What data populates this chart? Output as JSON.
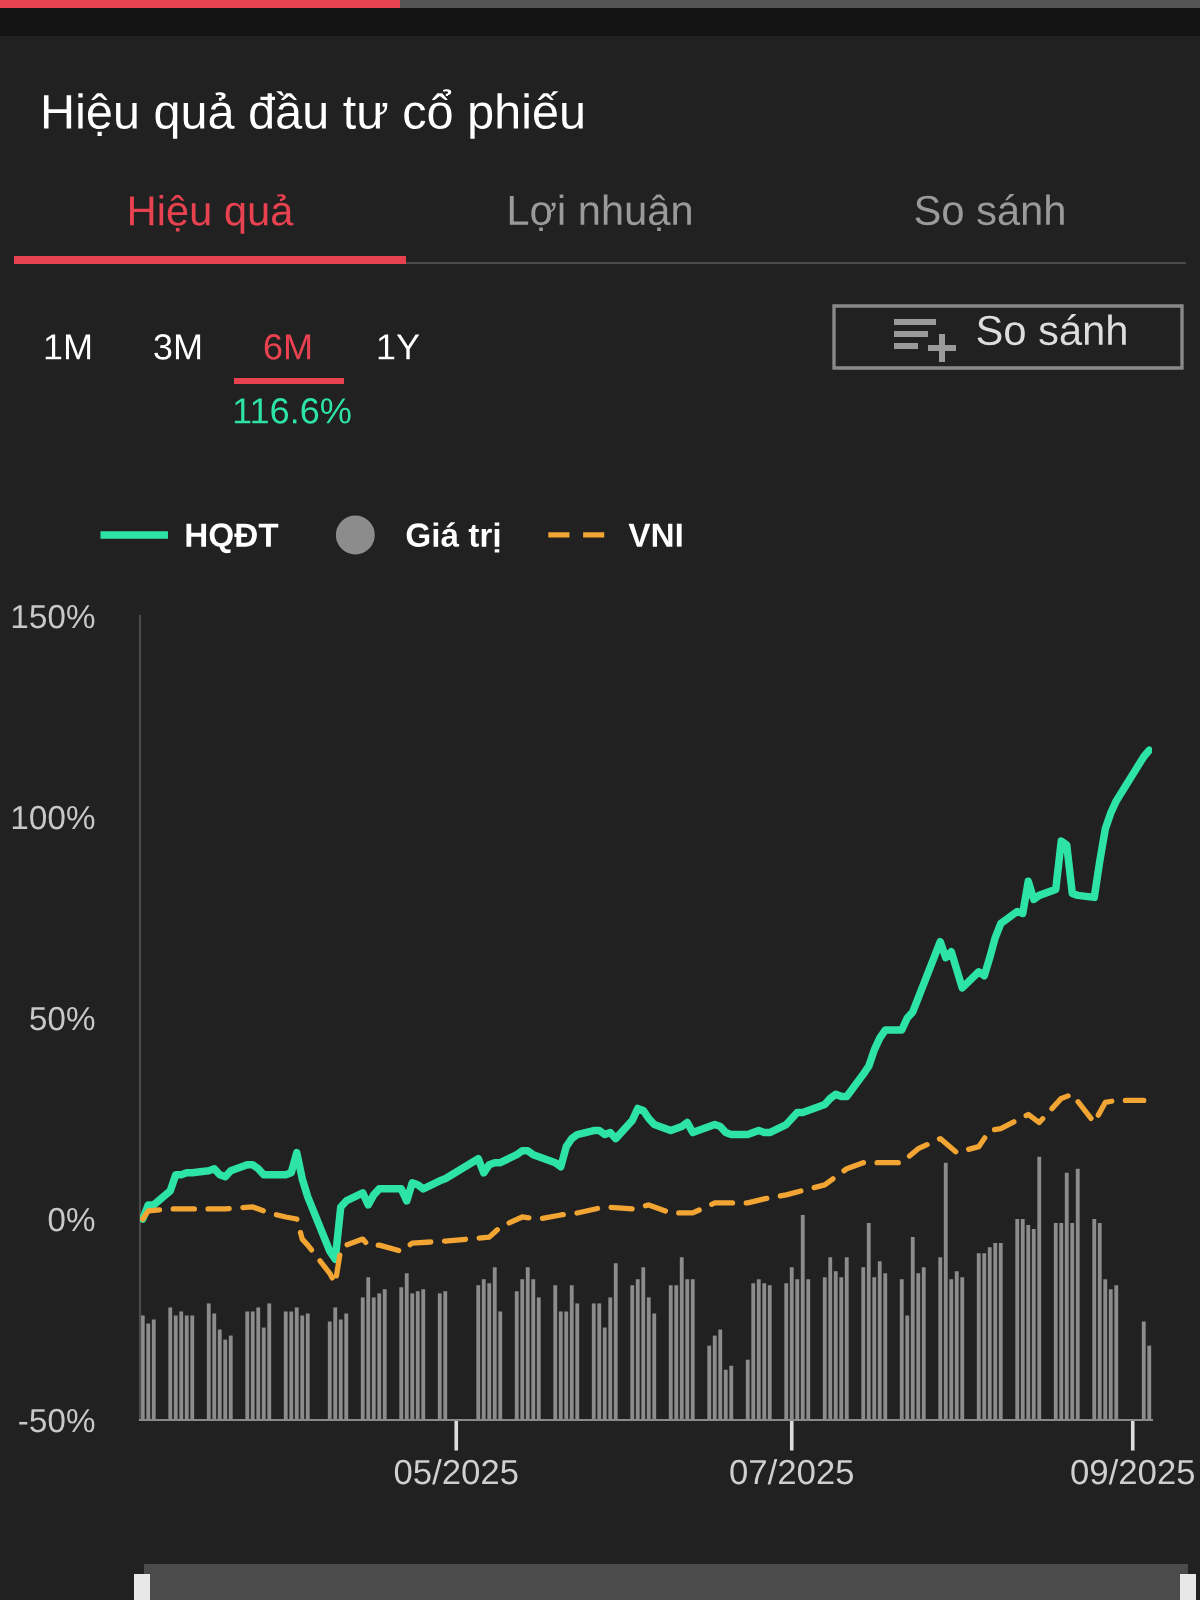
{
  "chart_data": {
    "type": "line",
    "title": "Hiệu quả đầu tư cổ phiếu",
    "annotations": [
      "Hiệu quả",
      "Lợi nhuận",
      "So sánh",
      "1M",
      "3M",
      "6M",
      "1Y",
      "116.6%",
      "So sánh"
    ],
    "xlim": [
      "2025-03-04T12:00",
      "2025-09-04T12:00"
    ],
    "xticks": [
      {
        "value": "2025-05-01",
        "label": "05/2025"
      },
      {
        "value": "2025-07-01",
        "label": "07/2025"
      },
      {
        "value": "2025-09-01",
        "label": "09/2025"
      }
    ],
    "ylim": [
      -50,
      150
    ],
    "yticks": [
      {
        "value": -50,
        "label": "-50%"
      },
      {
        "value": 0,
        "label": "0%"
      },
      {
        "value": 50,
        "label": "50%"
      },
      {
        "value": 100,
        "label": "100%"
      },
      {
        "value": 150,
        "label": "150%"
      }
    ],
    "legend": "top left",
    "series": [
      {
        "name": "HQĐT",
        "color": "#2ee3a6",
        "line_style": "solid",
        "x": [
          "2025-03-05",
          "2025-03-06",
          "2025-03-07",
          "2025-03-10",
          "2025-03-11",
          "2025-03-12",
          "2025-03-13",
          "2025-03-14",
          "2025-03-17",
          "2025-03-18",
          "2025-03-19",
          "2025-03-20",
          "2025-03-21",
          "2025-03-24",
          "2025-03-25",
          "2025-03-26",
          "2025-03-27",
          "2025-03-28",
          "2025-03-31",
          "2025-04-01",
          "2025-04-02",
          "2025-04-03",
          "2025-04-04",
          "2025-04-08",
          "2025-04-09",
          "2025-04-10",
          "2025-04-11",
          "2025-04-14",
          "2025-04-15",
          "2025-04-16",
          "2025-04-17",
          "2025-04-18",
          "2025-04-21",
          "2025-04-22",
          "2025-04-23",
          "2025-04-24",
          "2025-04-25",
          "2025-04-28",
          "2025-04-29",
          "2025-05-05",
          "2025-05-06",
          "2025-05-07",
          "2025-05-08",
          "2025-05-09",
          "2025-05-12",
          "2025-05-13",
          "2025-05-14",
          "2025-05-15",
          "2025-05-16",
          "2025-05-19",
          "2025-05-20",
          "2025-05-21",
          "2025-05-22",
          "2025-05-23",
          "2025-05-26",
          "2025-05-27",
          "2025-05-28",
          "2025-05-29",
          "2025-05-30",
          "2025-06-02",
          "2025-06-03",
          "2025-06-04",
          "2025-06-05",
          "2025-06-06",
          "2025-06-09",
          "2025-06-10",
          "2025-06-11",
          "2025-06-12",
          "2025-06-13",
          "2025-06-16",
          "2025-06-17",
          "2025-06-18",
          "2025-06-19",
          "2025-06-20",
          "2025-06-23",
          "2025-06-24",
          "2025-06-25",
          "2025-06-26",
          "2025-06-27",
          "2025-06-30",
          "2025-07-01",
          "2025-07-02",
          "2025-07-03",
          "2025-07-04",
          "2025-07-07",
          "2025-07-08",
          "2025-07-09",
          "2025-07-10",
          "2025-07-11",
          "2025-07-14",
          "2025-07-15",
          "2025-07-16",
          "2025-07-17",
          "2025-07-18",
          "2025-07-21",
          "2025-07-22",
          "2025-07-23",
          "2025-07-24",
          "2025-07-25",
          "2025-07-28",
          "2025-07-29",
          "2025-07-30",
          "2025-07-31",
          "2025-08-01",
          "2025-08-04",
          "2025-08-05",
          "2025-08-06",
          "2025-08-07",
          "2025-08-08",
          "2025-08-11",
          "2025-08-12",
          "2025-08-13",
          "2025-08-14",
          "2025-08-15",
          "2025-08-18",
          "2025-08-19",
          "2025-08-20",
          "2025-08-21",
          "2025-08-22",
          "2025-08-25",
          "2025-08-26",
          "2025-08-27",
          "2025-08-28",
          "2025-08-29",
          "2025-09-03",
          "2025-09-04"
        ],
        "values": [
          0,
          3.5,
          3.5,
          7,
          11,
          11,
          11.5,
          11.5,
          12,
          12.5,
          11,
          10.5,
          12,
          13.5,
          13.5,
          12.5,
          11,
          11,
          11,
          11.5,
          16.5,
          10,
          5.5,
          -8,
          -10,
          3,
          4.5,
          6.5,
          3.5,
          6,
          7.5,
          7.5,
          7.5,
          4.5,
          9,
          8.5,
          7.5,
          9.5,
          10,
          15,
          11.5,
          13.5,
          14,
          14,
          16,
          17,
          17,
          16,
          15.5,
          14,
          13,
          18,
          20,
          21,
          22,
          22,
          21,
          21.5,
          20,
          24.5,
          27.5,
          27,
          25,
          23.5,
          22,
          22.5,
          23,
          24,
          21.5,
          23,
          23.5,
          23,
          21.5,
          21,
          21,
          21.5,
          22,
          21.5,
          21.5,
          23.5,
          25,
          26.5,
          26.5,
          27,
          28.5,
          30,
          31,
          30.5,
          30.5,
          36,
          38,
          42,
          45,
          47,
          47,
          50,
          51.5,
          55,
          58.5,
          69,
          65,
          66.5,
          62,
          57.5,
          61.5,
          60.5,
          65,
          70,
          73.5,
          76.5,
          76,
          84,
          79.5,
          80.5,
          82,
          94,
          93,
          81,
          80.5,
          80,
          89,
          97,
          101,
          104,
          115,
          116.6
        ]
      },
      {
        "name": "Giá trị",
        "type": "bar",
        "color": "#8c8c8c",
        "x": [
          "2025-03-05",
          "2025-03-06",
          "2025-03-07",
          "2025-03-10",
          "2025-03-11",
          "2025-03-12",
          "2025-03-13",
          "2025-03-14",
          "2025-03-17",
          "2025-03-18",
          "2025-03-19",
          "2025-03-20",
          "2025-03-21",
          "2025-03-24",
          "2025-03-25",
          "2025-03-26",
          "2025-03-27",
          "2025-03-28",
          "2025-03-31",
          "2025-04-01",
          "2025-04-02",
          "2025-04-03",
          "2025-04-04",
          "2025-04-08",
          "2025-04-09",
          "2025-04-10",
          "2025-04-11",
          "2025-04-14",
          "2025-04-15",
          "2025-04-16",
          "2025-04-17",
          "2025-04-18",
          "2025-04-21",
          "2025-04-22",
          "2025-04-23",
          "2025-04-24",
          "2025-04-25",
          "2025-04-28",
          "2025-04-29",
          "2025-05-05",
          "2025-05-06",
          "2025-05-07",
          "2025-05-08",
          "2025-05-09",
          "2025-05-12",
          "2025-05-13",
          "2025-05-14",
          "2025-05-15",
          "2025-05-16",
          "2025-05-19",
          "2025-05-20",
          "2025-05-21",
          "2025-05-22",
          "2025-05-23",
          "2025-05-26",
          "2025-05-27",
          "2025-05-28",
          "2025-05-29",
          "2025-05-30",
          "2025-06-02",
          "2025-06-03",
          "2025-06-04",
          "2025-06-05",
          "2025-06-06",
          "2025-06-09",
          "2025-06-10",
          "2025-06-11",
          "2025-06-12",
          "2025-06-13",
          "2025-06-16",
          "2025-06-17",
          "2025-06-18",
          "2025-06-19",
          "2025-06-20",
          "2025-06-23",
          "2025-06-24",
          "2025-06-25",
          "2025-06-26",
          "2025-06-27",
          "2025-06-30",
          "2025-07-01",
          "2025-07-02",
          "2025-07-03",
          "2025-07-04",
          "2025-07-07",
          "2025-07-08",
          "2025-07-09",
          "2025-07-10",
          "2025-07-11",
          "2025-07-14",
          "2025-07-15",
          "2025-07-16",
          "2025-07-17",
          "2025-07-18",
          "2025-07-21",
          "2025-07-22",
          "2025-07-23",
          "2025-07-24",
          "2025-07-25",
          "2025-07-28",
          "2025-07-29",
          "2025-07-30",
          "2025-07-31",
          "2025-08-01",
          "2025-08-04",
          "2025-08-05",
          "2025-08-06",
          "2025-08-07",
          "2025-08-08",
          "2025-08-11",
          "2025-08-12",
          "2025-08-13",
          "2025-08-14",
          "2025-08-15",
          "2025-08-18",
          "2025-08-19",
          "2025-08-20",
          "2025-08-21",
          "2025-08-22",
          "2025-08-25",
          "2025-08-26",
          "2025-08-27",
          "2025-08-28",
          "2025-08-29",
          "2025-09-03",
          "2025-09-04"
        ],
        "values": [
          26,
          24,
          25,
          28,
          26,
          27,
          26,
          26,
          29,
          26.5,
          22.5,
          20,
          21,
          27,
          27,
          28,
          23,
          29,
          27,
          27,
          28,
          26,
          26.5,
          24.5,
          28,
          25,
          26.5,
          30.5,
          35.5,
          30.5,
          31.5,
          32.5,
          33,
          36.5,
          31.5,
          32,
          32.5,
          31.5,
          32,
          33.5,
          35,
          34,
          38,
          27,
          32,
          35,
          38,
          35,
          30.5,
          33.5,
          27,
          27,
          33.5,
          29,
          29,
          29,
          23,
          30.5,
          39,
          33.5,
          35,
          38,
          30.5,
          26.5,
          33.5,
          33.5,
          40.5,
          35,
          35,
          18.5,
          21,
          22.5,
          12.5,
          13.5,
          15,
          34,
          35,
          34,
          33.5,
          34,
          38,
          35,
          51,
          35,
          35.5,
          40.5,
          37,
          35.5,
          40.5,
          38,
          49,
          35.5,
          39.5,
          36.5,
          35,
          26,
          45.5,
          36.5,
          38,
          40.5,
          64,
          35,
          37,
          35.5,
          41.5,
          41.5,
          43,
          44,
          44,
          50,
          50,
          48.5,
          47.5,
          65.5,
          49,
          49,
          61.5,
          49,
          62.5,
          50,
          49,
          35,
          32.5,
          33.5,
          24.5,
          18.5
        ],
        "base": [
          -50,
          -50,
          -50,
          -50,
          -50,
          -50,
          -50,
          -50,
          -50,
          -50,
          -50,
          -50,
          -50,
          -50,
          -50,
          -50,
          -50,
          -50,
          -50,
          -50,
          -50,
          -50,
          -50,
          -50,
          -50,
          -50,
          -50,
          -50,
          -50,
          -50,
          -50,
          -50,
          -50,
          -50,
          -50,
          -50,
          -50,
          -50,
          -50,
          -50,
          -50,
          -50,
          -50,
          -50,
          -50,
          -50,
          -50,
          -50,
          -50,
          -50,
          -50,
          -50,
          -50,
          -50,
          -50,
          -50,
          -50,
          -50,
          -50,
          -50,
          -50,
          -50,
          -50,
          -50,
          -50,
          -50,
          -50,
          -50,
          -50,
          -50,
          -50,
          -50,
          -50,
          -50,
          -50,
          -50,
          -50,
          -50,
          -50,
          -50,
          -50,
          -50,
          -50,
          -50,
          -50,
          -50,
          -50,
          -50,
          -50,
          -50,
          -50,
          -50,
          -50,
          -50,
          -50,
          -50,
          -50,
          -50,
          -50,
          -50,
          -50,
          -50,
          -50,
          -50,
          -50,
          -50,
          -50,
          -50,
          -50,
          -50,
          -50,
          -50,
          -50,
          -50,
          -50,
          -50,
          -50,
          -50,
          -50,
          -50,
          -50,
          -50,
          -50,
          -50,
          -50,
          -50
        ]
      },
      {
        "name": "VNI",
        "color": "#f2a533",
        "line_style": "dashed",
        "x": [
          "2025-03-05",
          "2025-03-06",
          "2025-03-10",
          "2025-03-14",
          "2025-03-20",
          "2025-03-25",
          "2025-03-28",
          "2025-03-31",
          "2025-04-02",
          "2025-04-03",
          "2025-04-04",
          "2025-04-08",
          "2025-04-09",
          "2025-04-10",
          "2025-04-11",
          "2025-04-14",
          "2025-04-15",
          "2025-04-17",
          "2025-04-21",
          "2025-04-23",
          "2025-04-29",
          "2025-05-07",
          "2025-05-09",
          "2025-05-13",
          "2025-05-16",
          "2025-05-20",
          "2025-05-23",
          "2025-05-28",
          "2025-06-02",
          "2025-06-05",
          "2025-06-09",
          "2025-06-13",
          "2025-06-17",
          "2025-06-23",
          "2025-06-26",
          "2025-06-30",
          "2025-07-07",
          "2025-07-11",
          "2025-07-14",
          "2025-07-21",
          "2025-07-24",
          "2025-07-28",
          "2025-07-31",
          "2025-08-04",
          "2025-08-06",
          "2025-08-08",
          "2025-08-13",
          "2025-08-15",
          "2025-08-19",
          "2025-08-21",
          "2025-08-25",
          "2025-08-27",
          "2025-08-29",
          "2025-09-03"
        ],
        "values": [
          0,
          2,
          2.5,
          2.5,
          2.5,
          3,
          1.5,
          0.5,
          0,
          -5,
          -6.5,
          -13.5,
          -16,
          -7.5,
          -6.5,
          -5,
          -6.5,
          -6.5,
          -8,
          -6,
          -5.5,
          -4.5,
          -2,
          0.5,
          0,
          1,
          1.5,
          3,
          2.5,
          3.5,
          1.5,
          1.5,
          4,
          4,
          5,
          6,
          8.5,
          12.5,
          14,
          14,
          17.5,
          20,
          16.5,
          18,
          22,
          22.5,
          26,
          24,
          30,
          31,
          24,
          29,
          29.5,
          29.5
        ]
      }
    ]
  }
}
